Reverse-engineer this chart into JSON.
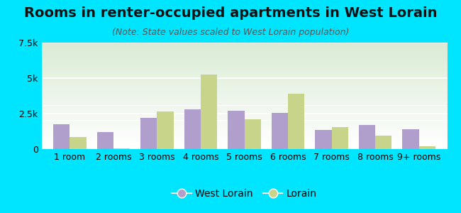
{
  "title": "Rooms in renter-occupied apartments in West Lorain",
  "subtitle": "(Note: State values scaled to West Lorain population)",
  "categories": [
    "1 room",
    "2 rooms",
    "3 rooms",
    "4 rooms",
    "5 rooms",
    "6 rooms",
    "7 rooms",
    "8 rooms",
    "9+ rooms"
  ],
  "west_lorain": [
    1750,
    1200,
    2200,
    2800,
    2700,
    2550,
    1350,
    1700,
    1400
  ],
  "lorain": [
    850,
    30,
    2650,
    5250,
    2100,
    3900,
    1550,
    950,
    200
  ],
  "west_lorain_color": "#b09fcc",
  "lorain_color": "#c8d48a",
  "background_color": "#00e5ff",
  "grad_top": "#daebd4",
  "grad_bottom": "#ffffff",
  "ylim": [
    0,
    7500
  ],
  "yticks": [
    0,
    2500,
    5000,
    7500
  ],
  "ytick_labels": [
    "0",
    "2.5k",
    "5k",
    "7.5k"
  ],
  "bar_width": 0.38,
  "legend_labels": [
    "West Lorain",
    "Lorain"
  ],
  "title_fontsize": 14,
  "subtitle_fontsize": 9,
  "tick_fontsize": 9,
  "legend_fontsize": 10
}
